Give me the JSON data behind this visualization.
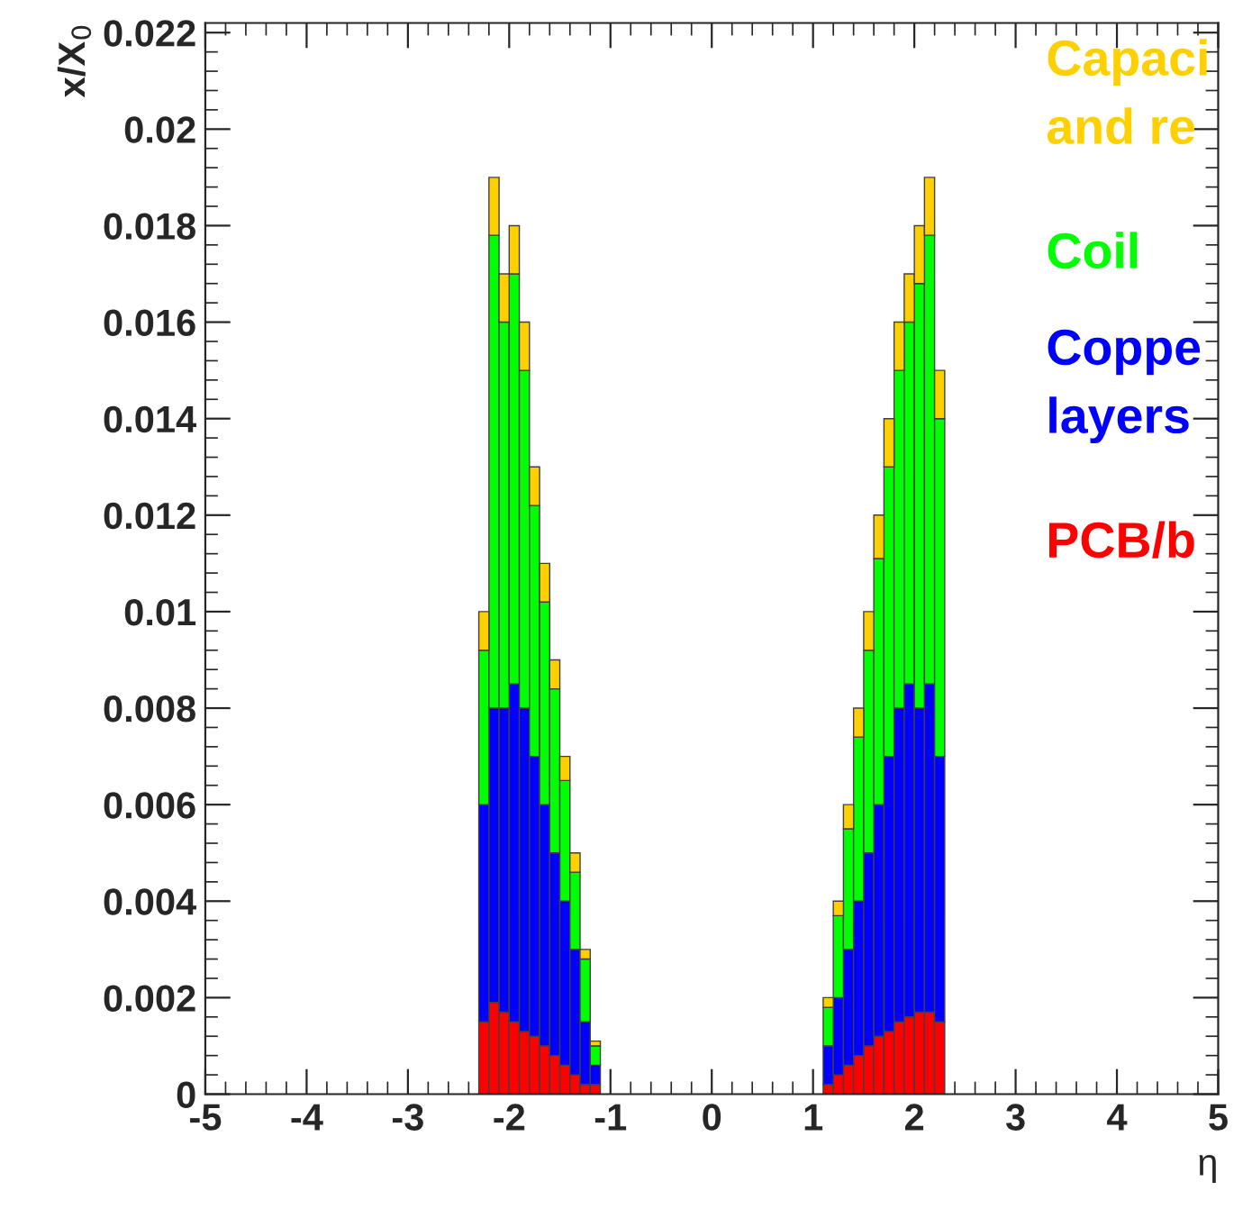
{
  "chart_data": {
    "type": "bar",
    "stacked": true,
    "xlabel": "η",
    "ylabel": "x/X$_{0}$",
    "x": [
      -2.25,
      -2.15,
      -2.05,
      -1.95,
      -1.85,
      -1.75,
      -1.65,
      -1.55,
      -1.45,
      -1.35,
      -1.25,
      -1.15,
      1.15,
      1.25,
      1.35,
      1.45,
      1.55,
      1.65,
      1.75,
      1.85,
      1.95,
      2.05,
      2.15,
      2.25
    ],
    "series": [
      {
        "name": "PCB/b",
        "color": "#ff0000",
        "values": [
          0.0015,
          0.0019,
          0.0017,
          0.0015,
          0.0013,
          0.0012,
          0.001,
          0.0008,
          0.0006,
          0.0004,
          0.0002,
          0.0002,
          0.0002,
          0.0004,
          0.0006,
          0.0008,
          0.001,
          0.0012,
          0.0013,
          0.0015,
          0.0016,
          0.0017,
          0.0017,
          0.0015
        ]
      },
      {
        "name": "Coppe\nlayers",
        "color": "#0000ff",
        "values": [
          0.0045,
          0.0061,
          0.0063,
          0.007,
          0.0067,
          0.0058,
          0.005,
          0.0042,
          0.0034,
          0.0026,
          0.0013,
          0.0004,
          0.0008,
          0.0016,
          0.0024,
          0.0032,
          0.004,
          0.0048,
          0.0057,
          0.0065,
          0.0069,
          0.0063,
          0.0068,
          0.0055
        ]
      },
      {
        "name": "Coil",
        "color": "#00ff00",
        "values": [
          0.0032,
          0.0098,
          0.008,
          0.0085,
          0.007,
          0.0052,
          0.0042,
          0.0034,
          0.0025,
          0.0016,
          0.0013,
          0.0004,
          0.0008,
          0.0017,
          0.0025,
          0.0034,
          0.0042,
          0.0051,
          0.006,
          0.007,
          0.0075,
          0.0088,
          0.0093,
          0.007
        ]
      },
      {
        "name": "Capaci\nand re",
        "color": "#ffd000",
        "values": [
          0.0008,
          0.0012,
          0.001,
          0.001,
          0.001,
          0.0008,
          0.0008,
          0.0006,
          0.0005,
          0.0004,
          0.0002,
          0.0001,
          0.0002,
          0.0003,
          0.0005,
          0.0006,
          0.0008,
          0.0009,
          0.001,
          0.001,
          0.001,
          0.0012,
          0.0012,
          0.001
        ]
      }
    ],
    "xlim": [
      -5,
      5
    ],
    "xticks": [
      -5,
      -4,
      -3,
      -2,
      -1,
      0,
      1,
      2,
      3,
      4,
      5
    ],
    "ylim": [
      0,
      0.0222
    ],
    "yticks": [
      0,
      0.002,
      0.004,
      0.006,
      0.008,
      0.01,
      0.012,
      0.014,
      0.016,
      0.018,
      0.02,
      0.022
    ],
    "legend": "top right"
  }
}
